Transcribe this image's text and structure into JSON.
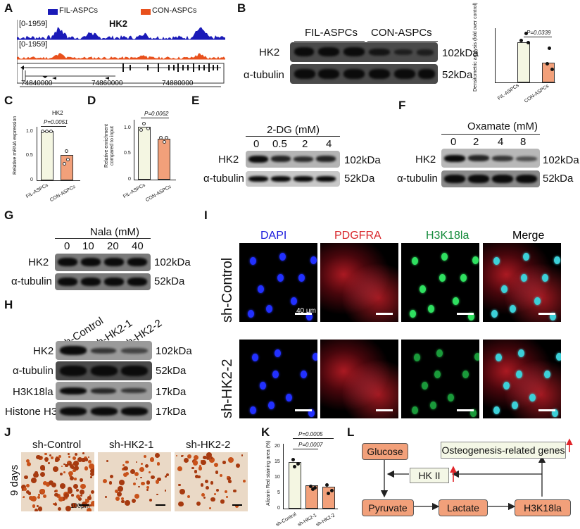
{
  "panels": {
    "A": "A",
    "B": "B",
    "C": "C",
    "D": "D",
    "E": "E",
    "F": "F",
    "G": "G",
    "H": "H",
    "I": "I",
    "J": "J",
    "K": "K",
    "L": "L"
  },
  "A": {
    "legend1": "FIL-ASPCs",
    "legend2": "CON-ASPCs",
    "gene": "HK2",
    "range1": "[0-1959]",
    "range2": "[0-1959]",
    "coords": [
      "74840000",
      "74860000",
      "74880000"
    ],
    "colors": {
      "fil": "#1a1ab8",
      "con": "#e8501c"
    }
  },
  "B": {
    "groups": [
      "FIL-ASPCs",
      "CON-ASPCs"
    ],
    "rows": [
      "HK2",
      "α-tubulin"
    ],
    "sizes": [
      "102kDa",
      "52kDa"
    ],
    "pval": "P=0.0339",
    "ylabel": "Densitometric analysis (fold over control)",
    "xcats": [
      "FIL-ASPCs",
      "CON-ASPCs"
    ],
    "values": [
      0.72,
      0.36
    ],
    "yticks": [
      "0",
      "0.5",
      "1.0"
    ]
  },
  "C": {
    "title": "HK2",
    "pval": "P=0.0051",
    "ylabel": "Relative mRNA expression",
    "xcats": [
      "FIL-ASPCs",
      "CON-ASPCs"
    ],
    "values": [
      1.0,
      0.52
    ],
    "yticks": [
      "0",
      "0.5",
      "1.0"
    ]
  },
  "D": {
    "pval": "P=0.0062",
    "ylabel": "Relative enrichment compared to input",
    "xcats": [
      "FIL-ASPCs",
      "CON-ASPCs"
    ],
    "values": [
      1.05,
      0.82
    ],
    "yticks": [
      "0",
      "0.5",
      "1.0"
    ]
  },
  "E": {
    "title": "2-DG (mM)",
    "doses": [
      "0",
      "0.5",
      "2",
      "4"
    ],
    "rows": [
      "HK2",
      "α-tubulin"
    ],
    "sizes": [
      "102kDa",
      "52kDa"
    ]
  },
  "F": {
    "title": "Oxamate (mM)",
    "doses": [
      "0",
      "2",
      "4",
      "8"
    ],
    "rows": [
      "HK2",
      "α-tubulin"
    ],
    "sizes": [
      "102kDa",
      "52kDa"
    ]
  },
  "G": {
    "title": "Nala (mM)",
    "doses": [
      "0",
      "10",
      "20",
      "40"
    ],
    "rows": [
      "HK2",
      "α-tubulin"
    ],
    "sizes": [
      "102kDa",
      "52kDa"
    ]
  },
  "H": {
    "lanes": [
      "sh-Control",
      "sh-HK2-1",
      "sh-HK2-2"
    ],
    "rows": [
      "HK2",
      "α-tubulin",
      "H3K18la",
      "Histone H3"
    ],
    "sizes": [
      "102kDa",
      "52kDa",
      "17kDa",
      "17kDa"
    ]
  },
  "I": {
    "channels": [
      "DAPI",
      "PDGFRA",
      "H3K18la",
      "Merge"
    ],
    "rowlabels": [
      "sh-Control",
      "sh-HK2-2"
    ],
    "scalebar": "40 μm",
    "colors": {
      "dapi": "#1b1bdc",
      "pdgfra": "#d8262a",
      "h3k18la": "#138a3a"
    }
  },
  "J": {
    "lanes": [
      "sh-Control",
      "sh-HK2-1",
      "sh-HK2-2"
    ],
    "side": "9 days",
    "scalebar": "100μm"
  },
  "K": {
    "pvals": [
      "P=0.0005",
      "P=0.0007"
    ],
    "ylabel": "Alizarin Red staining area (%)",
    "xcats": [
      "sh-Control",
      "sh-HK2-1",
      "sh-HK2-2"
    ],
    "values": [
      16,
      8,
      7.5
    ],
    "yticks": [
      "0",
      "5",
      "10",
      "15",
      "20"
    ]
  },
  "L": {
    "glucose": "Glucose",
    "pyruvate": "Pyruvate",
    "lactate": "Lactate",
    "h3k18la": "H3K18la",
    "hk2": "HK II",
    "genes": "Osteogenesis-related genes"
  }
}
